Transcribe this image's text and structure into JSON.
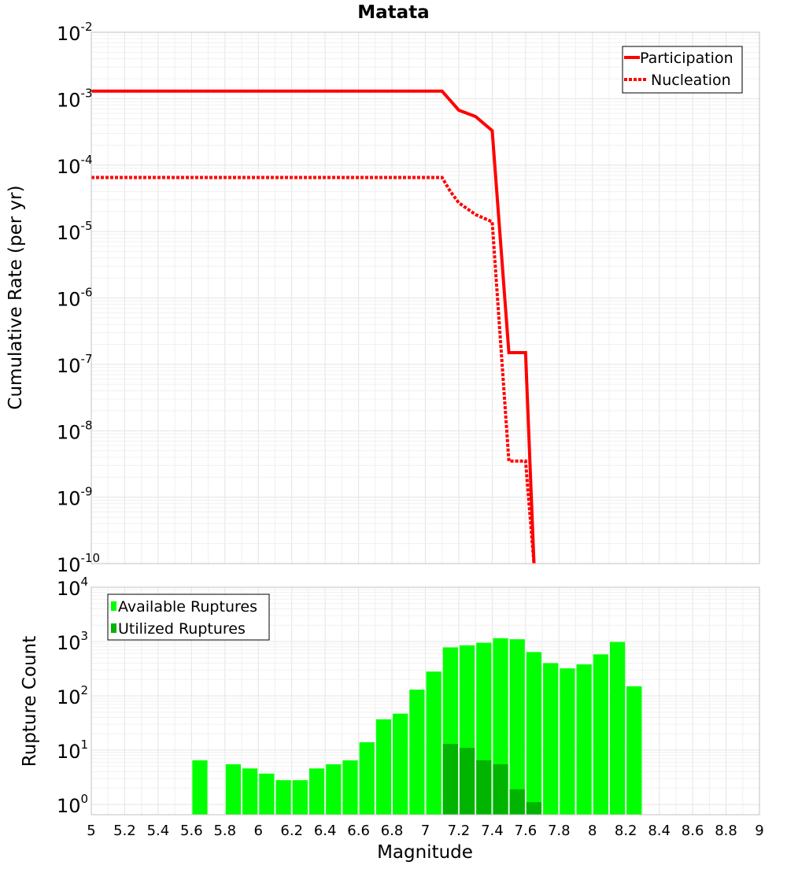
{
  "chart_data": [
    {
      "type": "line",
      "title": "Matata",
      "xlabel": "",
      "ylabel": "Cumulative Rate (per yr)",
      "xlim": [
        5,
        9
      ],
      "ylim_exponents": [
        -10,
        -2
      ],
      "yscale": "log",
      "y_tick_base": "10",
      "y_tick_exponents": [
        "-2",
        "-3",
        "-4",
        "-5",
        "-6",
        "-7",
        "-8",
        "-9",
        "-10"
      ],
      "legend_position": "top-right",
      "series": [
        {
          "name": "Participation",
          "style": "solid",
          "color": "#ff0000",
          "x": [
            5.0,
            7.1,
            7.2,
            7.3,
            7.4,
            7.5,
            7.6,
            7.65
          ],
          "y": [
            0.0013,
            0.0013,
            0.00067,
            0.00054,
            0.00033,
            1.5e-07,
            1.5e-07,
            1e-10
          ]
        },
        {
          "name": "Nucleation",
          "style": "dotted",
          "color": "#ff0000",
          "x": [
            5.0,
            7.1,
            7.15,
            7.2,
            7.3,
            7.4,
            7.5,
            7.6,
            7.65
          ],
          "y": [
            6.5e-05,
            6.5e-05,
            4e-05,
            2.7e-05,
            1.8e-05,
            1.4e-05,
            3.5e-09,
            3.5e-09,
            1e-10
          ]
        }
      ]
    },
    {
      "type": "bar",
      "title": "",
      "xlabel": "Magnitude",
      "ylabel": "Rupture Count",
      "xlim": [
        5,
        9
      ],
      "ylim_exponents": [
        0,
        4
      ],
      "yscale": "log",
      "y_tick_base": "10",
      "y_tick_exponents": [
        "4",
        "3",
        "2",
        "1",
        "0"
      ],
      "x_ticks": [
        "5",
        "5.2",
        "5.4",
        "5.6",
        "5.8",
        "6",
        "6.2",
        "6.4",
        "6.6",
        "6.8",
        "7",
        "7.2",
        "7.4",
        "7.6",
        "7.8",
        "8",
        "8.2",
        "8.4",
        "8.6",
        "8.8",
        "9"
      ],
      "bin_width": 0.1,
      "legend_position": "top-left",
      "categories": [
        5.65,
        5.85,
        5.95,
        6.05,
        6.15,
        6.25,
        6.35,
        6.45,
        6.55,
        6.65,
        6.75,
        6.85,
        6.95,
        7.05,
        7.15,
        7.25,
        7.35,
        7.45,
        7.55,
        7.65,
        7.75,
        7.85,
        7.95,
        8.05,
        8.15,
        8.25
      ],
      "series": [
        {
          "name": "Available Ruptures",
          "color": "#00ff00",
          "values": [
            6.5,
            5.5,
            4.6,
            3.7,
            2.8,
            2.8,
            4.6,
            5.5,
            6.5,
            14,
            37,
            47,
            130,
            280,
            780,
            850,
            950,
            1150,
            1100,
            640,
            400,
            320,
            380,
            580,
            980,
            150
          ]
        },
        {
          "name": "Utilized Ruptures",
          "color": "#00b400",
          "values": [
            0,
            0,
            0,
            0,
            0,
            0,
            0,
            0,
            0,
            0,
            0,
            0,
            0,
            0,
            13,
            11,
            6.5,
            5.5,
            1.9,
            1.1,
            0,
            0,
            0,
            0,
            0,
            0
          ]
        }
      ]
    }
  ]
}
